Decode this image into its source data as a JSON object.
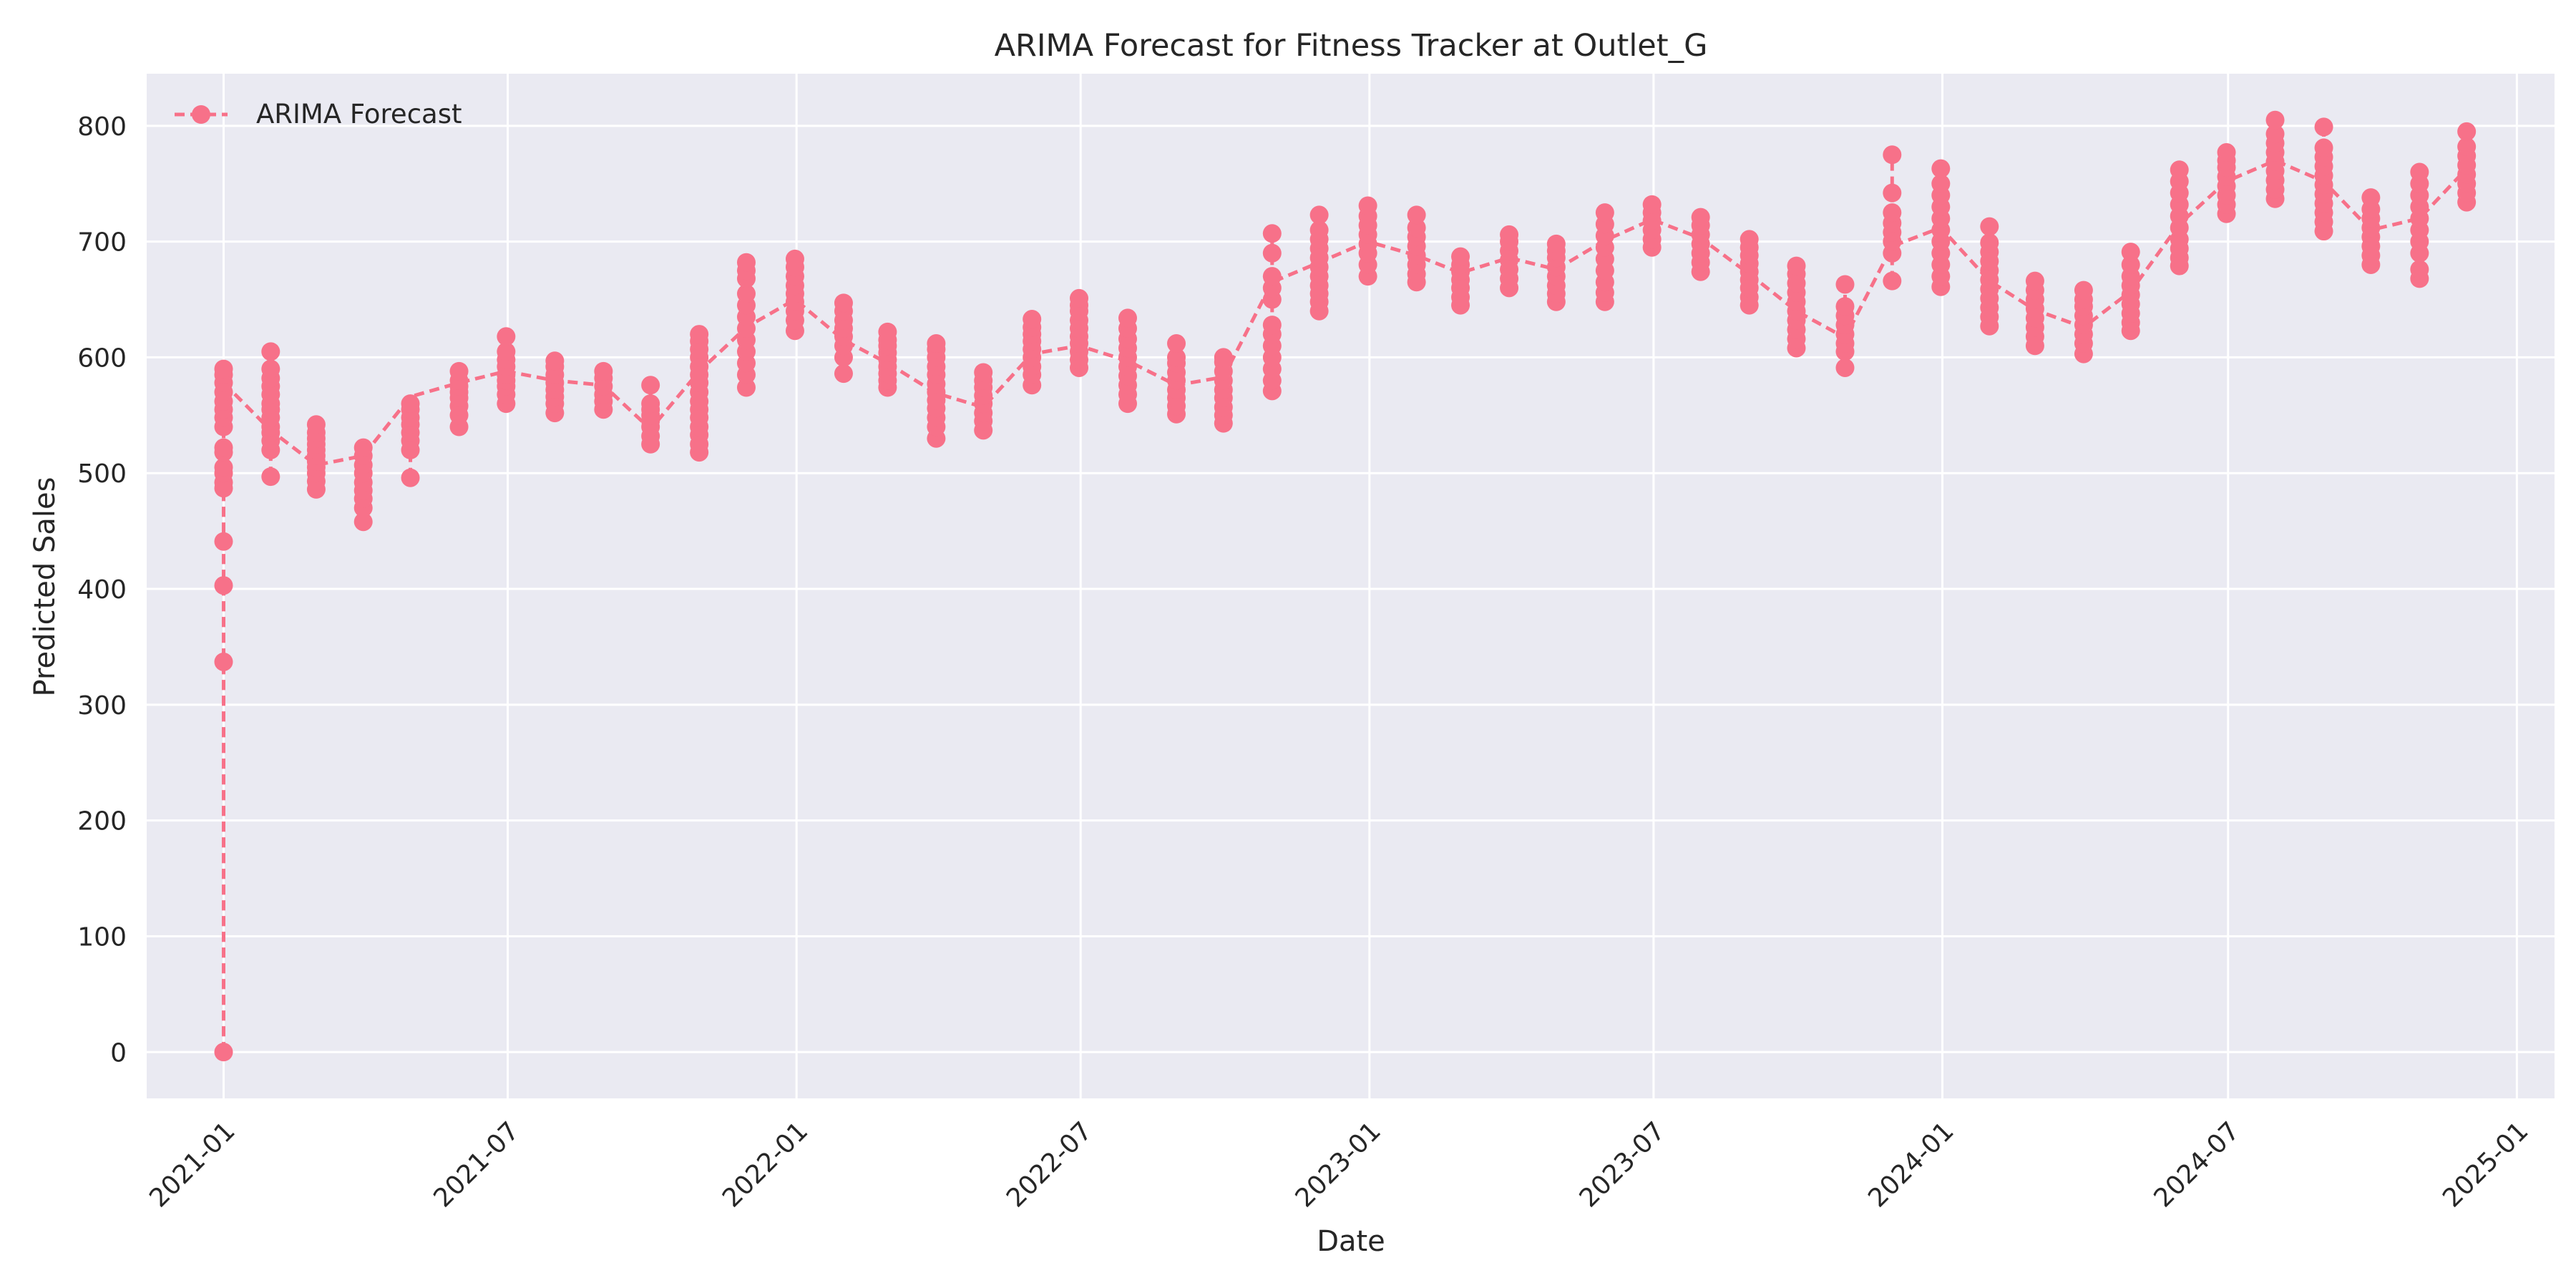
{
  "chart_data": {
    "type": "line",
    "title": "ARIMA Forecast for Fitness Tracker at Outlet_G",
    "xlabel": "Date",
    "ylabel": "Predicted Sales",
    "ylim": [
      -40,
      845
    ],
    "xlim": [
      "2020-11-13",
      "2025-01-25"
    ],
    "grid": true,
    "legend_position": "top-left",
    "x_ticks": [
      "2021-01",
      "2021-07",
      "2022-01",
      "2022-07",
      "2023-01",
      "2023-07",
      "2024-01",
      "2024-07",
      "2025-01"
    ],
    "y_ticks": [
      0,
      100,
      200,
      300,
      400,
      500,
      600,
      700,
      800
    ],
    "series": [
      {
        "name": "ARIMA Forecast",
        "color": "#f77189",
        "line_style": "dashed",
        "marker": "circle",
        "x": [
          "2021-01-01",
          "2021-01-31",
          "2021-03-01",
          "2021-03-31",
          "2021-04-30",
          "2021-05-31",
          "2021-06-30",
          "2021-07-31",
          "2021-08-31",
          "2021-09-30",
          "2021-10-31",
          "2021-11-30",
          "2021-12-31",
          "2022-01-31",
          "2022-02-28",
          "2022-03-31",
          "2022-04-30",
          "2022-05-31",
          "2022-06-30",
          "2022-07-31",
          "2022-08-31",
          "2022-09-30",
          "2022-10-31",
          "2022-11-30",
          "2022-12-31",
          "2023-01-31",
          "2023-02-28",
          "2023-03-31",
          "2023-04-30",
          "2023-05-31",
          "2023-06-30",
          "2023-07-31",
          "2023-08-31",
          "2023-09-30",
          "2023-10-31",
          "2023-11-30",
          "2023-12-31",
          "2024-01-31",
          "2024-02-29",
          "2024-03-31",
          "2024-04-30",
          "2024-05-31",
          "2024-06-30",
          "2024-07-31",
          "2024-08-31",
          "2024-09-30",
          "2024-10-31",
          "2024-11-30"
        ],
        "y": [
          578,
          537,
          507,
          515,
          566,
          578,
          588,
          580,
          576,
          538,
          588,
          626,
          650,
          615,
          595,
          569,
          557,
          603,
          610,
          597,
          576,
          583,
          665,
          682,
          700,
          688,
          673,
          686,
          676,
          701,
          719,
          703,
          672,
          640,
          617,
          696,
          712,
          666,
          641,
          626,
          657,
          715,
          752,
          770,
          752,
          710,
          720,
          763
        ],
        "clusters": [
          {
            "x": "2021-01-01",
            "y": [
              0,
              337,
              403,
              441,
              487,
              492,
              500,
              505,
              518,
              522,
              540,
              548,
              555,
              562,
              570,
              578,
              585,
              590
            ]
          },
          {
            "x": "2021-01-31",
            "y": [
              497,
              520,
              528,
              535,
              540,
              548,
              555,
              560,
              568,
              575,
              582,
              590,
              605
            ]
          },
          {
            "x": "2021-03-01",
            "y": [
              486,
              493,
              500,
              505,
              510,
              515,
              520,
              525,
              530,
              535,
              542
            ]
          },
          {
            "x": "2021-03-31",
            "y": [
              458,
              470,
              478,
              485,
              492,
              500,
              507,
              515,
              522
            ]
          },
          {
            "x": "2021-04-30",
            "y": [
              496,
              520,
              528,
              535,
              542,
              548,
              555,
              560
            ]
          },
          {
            "x": "2021-05-31",
            "y": [
              540,
              550,
              558,
              565,
              570,
              575,
              580,
              588
            ]
          },
          {
            "x": "2021-06-30",
            "y": [
              560,
              568,
              575,
              580,
              585,
              592,
              598,
              605,
              618
            ]
          },
          {
            "x": "2021-07-31",
            "y": [
              552,
              560,
              566,
              572,
              578,
              585,
              592,
              597
            ]
          },
          {
            "x": "2021-08-31",
            "y": [
              555,
              562,
              568,
              575,
              582,
              588
            ]
          },
          {
            "x": "2021-09-30",
            "y": [
              525,
              532,
              540,
              545,
              550,
              555,
              560,
              576
            ]
          },
          {
            "x": "2021-10-31",
            "y": [
              518,
              525,
              533,
              540,
              548,
              555,
              562,
              570,
              578,
              585,
              592,
              600,
              607,
              614,
              620
            ]
          },
          {
            "x": "2021-11-30",
            "y": [
              574,
              585,
              595,
              605,
              615,
              625,
              635,
              645,
              655,
              668,
              675,
              682
            ]
          },
          {
            "x": "2021-12-31",
            "y": [
              623,
              632,
              640,
              648,
              655,
              662,
              670,
              678,
              685
            ]
          },
          {
            "x": "2022-01-31",
            "y": [
              586,
              600,
              610,
              618,
              625,
              632,
              640,
              647
            ]
          },
          {
            "x": "2022-02-28",
            "y": [
              574,
              580,
              586,
              592,
              598,
              604,
              610,
              615,
              622
            ]
          },
          {
            "x": "2022-03-31",
            "y": [
              530,
              540,
              548,
              556,
              563,
              570,
              577,
              585,
              592,
              600,
              607,
              612
            ]
          },
          {
            "x": "2022-04-30",
            "y": [
              537,
              545,
              552,
              560,
              567,
              574,
              580,
              587
            ]
          },
          {
            "x": "2022-05-31",
            "y": [
              576,
              585,
              592,
              600,
              607,
              614,
              620,
              626,
              633
            ]
          },
          {
            "x": "2022-06-30",
            "y": [
              591,
              598,
              605,
              612,
              618,
              625,
              632,
              640,
              645,
              651
            ]
          },
          {
            "x": "2022-07-31",
            "y": [
              560,
              568,
              576,
              584,
              592,
              600,
              608,
              616,
              625,
              634
            ]
          },
          {
            "x": "2022-08-31",
            "y": [
              551,
              558,
              565,
              572,
              580,
              587,
              595,
              600,
              612
            ]
          },
          {
            "x": "2022-09-30",
            "y": [
              543,
              550,
              557,
              565,
              572,
              580,
              588,
              596,
              600
            ]
          },
          {
            "x": "2022-10-31",
            "y": [
              571,
              580,
              590,
              600,
              610,
              620,
              628,
              650,
              660,
              670,
              690,
              707
            ]
          },
          {
            "x": "2022-11-30",
            "y": [
              640,
              648,
              655,
              662,
              670,
              678,
              686,
              694,
              702,
              710,
              723
            ]
          },
          {
            "x": "2022-12-31",
            "y": [
              670,
              680,
              690,
              698,
              706,
              714,
              722,
              731
            ]
          },
          {
            "x": "2023-01-31",
            "y": [
              665,
              672,
              680,
              688,
              696,
              704,
              712,
              723
            ]
          },
          {
            "x": "2023-02-28",
            "y": [
              645,
              652,
              660,
              667,
              674,
              680,
              687
            ]
          },
          {
            "x": "2023-03-31",
            "y": [
              660,
              668,
              676,
              684,
              692,
              700,
              706
            ]
          },
          {
            "x": "2023-04-30",
            "y": [
              648,
              655,
              662,
              670,
              678,
              686,
              692,
              698
            ]
          },
          {
            "x": "2023-05-31",
            "y": [
              648,
              656,
              665,
              675,
              685,
              695,
              705,
              715,
              725
            ]
          },
          {
            "x": "2023-06-30",
            "y": [
              695,
              702,
              710,
              718,
              725,
              732
            ]
          },
          {
            "x": "2023-07-31",
            "y": [
              674,
              682,
              690,
              698,
              706,
              714,
              721
            ]
          },
          {
            "x": "2023-08-31",
            "y": [
              645,
              652,
              660,
              667,
              674,
              681,
              688,
              695,
              702
            ]
          },
          {
            "x": "2023-09-30",
            "y": [
              608,
              616,
              624,
              632,
              640,
              648,
              656,
              664,
              672,
              679
            ]
          },
          {
            "x": "2023-10-31",
            "y": [
              591,
              605,
              612,
              620,
              628,
              636,
              644,
              663
            ]
          },
          {
            "x": "2023-11-30",
            "y": [
              666,
              690,
              700,
              708,
              716,
              725,
              742,
              775
            ]
          },
          {
            "x": "2023-12-31",
            "y": [
              661,
              670,
              680,
              690,
              700,
              710,
              720,
              730,
              740,
              750,
              763
            ]
          },
          {
            "x": "2024-01-31",
            "y": [
              627,
              635,
              643,
              651,
              659,
              667,
              675,
              683,
              691,
              699,
              713
            ]
          },
          {
            "x": "2024-02-29",
            "y": [
              610,
              618,
              626,
              634,
              642,
              650,
              658,
              666
            ]
          },
          {
            "x": "2024-03-31",
            "y": [
              603,
              612,
              620,
              628,
              636,
              644,
              650,
              658
            ]
          },
          {
            "x": "2024-04-30",
            "y": [
              623,
              630,
              638,
              646,
              654,
              662,
              670,
              680,
              691
            ]
          },
          {
            "x": "2024-05-31",
            "y": [
              679,
              686,
              694,
              702,
              712,
              722,
              732,
              742,
              752,
              762
            ]
          },
          {
            "x": "2024-06-30",
            "y": [
              724,
              732,
              740,
              748,
              756,
              764,
              770,
              777
            ]
          },
          {
            "x": "2024-07-31",
            "y": [
              737,
              745,
              753,
              761,
              769,
              777,
              785,
              793,
              805
            ]
          },
          {
            "x": "2024-08-31",
            "y": [
              709,
              717,
              725,
              733,
              741,
              749,
              757,
              765,
              773,
              781,
              799
            ]
          },
          {
            "x": "2024-09-30",
            "y": [
              680,
              688,
              696,
              704,
              712,
              720,
              728,
              738
            ]
          },
          {
            "x": "2024-10-31",
            "y": [
              668,
              676,
              690,
              700,
              710,
              720,
              730,
              740,
              750,
              760
            ]
          },
          {
            "x": "2024-11-30",
            "y": [
              734,
              742,
              750,
              758,
              766,
              774,
              782,
              795
            ]
          }
        ]
      }
    ]
  }
}
